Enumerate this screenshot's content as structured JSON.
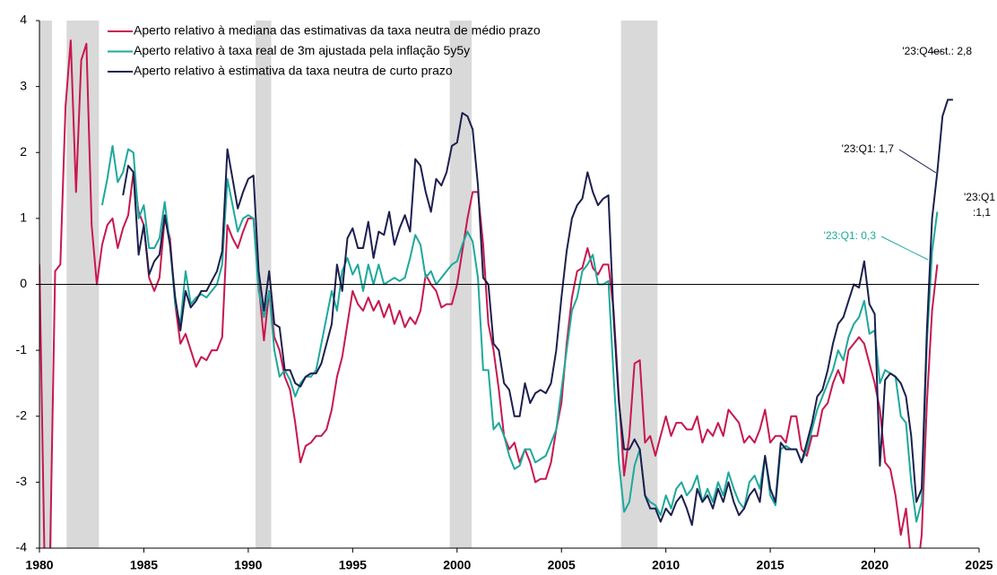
{
  "chart_data": {
    "type": "line",
    "x": [
      1980,
      1980.25,
      1980.5,
      1980.75,
      1981,
      1981.25,
      1981.5,
      1981.75,
      1982,
      1982.25,
      1982.5,
      1982.75,
      1983,
      1983.25,
      1983.5,
      1983.75,
      1984,
      1984.25,
      1984.5,
      1984.75,
      1985,
      1985.25,
      1985.5,
      1985.75,
      1986,
      1986.25,
      1986.5,
      1986.75,
      1987,
      1987.25,
      1987.5,
      1987.75,
      1988,
      1988.25,
      1988.5,
      1988.75,
      1989,
      1989.25,
      1989.5,
      1989.75,
      1990,
      1990.25,
      1990.5,
      1990.75,
      1991,
      1991.25,
      1991.5,
      1991.75,
      1992,
      1992.25,
      1992.5,
      1992.75,
      1993,
      1993.25,
      1993.5,
      1993.75,
      1994,
      1994.25,
      1994.5,
      1994.75,
      1995,
      1995.25,
      1995.5,
      1995.75,
      1996,
      1996.25,
      1996.5,
      1996.75,
      1997,
      1997.25,
      1997.5,
      1997.75,
      1998,
      1998.25,
      1998.5,
      1998.75,
      1999,
      1999.25,
      1999.5,
      1999.75,
      2000,
      2000.25,
      2000.5,
      2000.75,
      2001,
      2001.25,
      2001.5,
      2001.75,
      2002,
      2002.25,
      2002.5,
      2002.75,
      2003,
      2003.25,
      2003.5,
      2003.75,
      2004,
      2004.25,
      2004.5,
      2004.75,
      2005,
      2005.25,
      2005.5,
      2005.75,
      2006,
      2006.25,
      2006.5,
      2006.75,
      2007,
      2007.25,
      2007.5,
      2007.75,
      2008,
      2008.25,
      2008.5,
      2008.75,
      2009,
      2009.25,
      2009.5,
      2009.75,
      2010,
      2010.25,
      2010.5,
      2010.75,
      2011,
      2011.25,
      2011.5,
      2011.75,
      2012,
      2012.25,
      2012.5,
      2012.75,
      2013,
      2013.25,
      2013.5,
      2013.75,
      2014,
      2014.25,
      2014.5,
      2014.75,
      2015,
      2015.25,
      2015.5,
      2015.75,
      2016,
      2016.25,
      2016.5,
      2016.75,
      2017,
      2017.25,
      2017.5,
      2017.75,
      2018,
      2018.25,
      2018.5,
      2018.75,
      2019,
      2019.25,
      2019.5,
      2019.75,
      2020,
      2020.25,
      2020.5,
      2020.75,
      2021,
      2021.25,
      2021.5,
      2021.75,
      2022,
      2022.25,
      2022.5,
      2022.75,
      2023,
      2023.25,
      2023.5,
      2023.75
    ],
    "series": [
      {
        "name": "Aperto relativo à mediana das estimativas da taxa neutra de médio prazo",
        "color": "#c8174e",
        "values": [
          0.3,
          -4.3,
          -4.3,
          0.2,
          0.3,
          2.7,
          3.7,
          1.4,
          3.4,
          3.65,
          0.9,
          0.0,
          0.6,
          0.9,
          1.0,
          0.55,
          0.85,
          1.05,
          1.7,
          1.1,
          0.9,
          0.1,
          -0.1,
          0.1,
          1.0,
          0.7,
          -0.3,
          -0.9,
          -0.75,
          -1.0,
          -1.25,
          -1.1,
          -1.15,
          -1.0,
          -1.0,
          -0.8,
          0.9,
          0.7,
          0.55,
          0.8,
          1.0,
          1.0,
          0.0,
          -0.85,
          -0.1,
          -0.8,
          -1.0,
          -1.4,
          -1.6,
          -2.1,
          -2.7,
          -2.45,
          -2.4,
          -2.3,
          -2.3,
          -2.2,
          -1.9,
          -1.4,
          -1.1,
          -0.6,
          -0.1,
          -0.3,
          -0.4,
          -0.2,
          -0.4,
          -0.25,
          -0.5,
          -0.3,
          -0.6,
          -0.4,
          -0.65,
          -0.5,
          -0.6,
          -0.4,
          0.15,
          0.0,
          -0.1,
          -0.35,
          -0.3,
          -0.3,
          0.0,
          0.5,
          1.0,
          1.4,
          1.4,
          0.6,
          -0.6,
          -1.0,
          -1.6,
          -2.3,
          -2.5,
          -2.4,
          -2.7,
          -2.5,
          -2.7,
          -3.0,
          -2.95,
          -2.95,
          -2.7,
          -2.2,
          -1.8,
          -0.9,
          -0.2,
          0.2,
          0.25,
          0.55,
          0.25,
          0.15,
          0.3,
          0.3,
          -0.4,
          -1.7,
          -2.9,
          -2.3,
          -1.2,
          -1.15,
          -2.4,
          -2.3,
          -2.6,
          -2.3,
          -2.0,
          -2.3,
          -2.1,
          -2.1,
          -2.2,
          -2.2,
          -2.0,
          -2.4,
          -2.2,
          -2.3,
          -2.1,
          -2.3,
          -1.9,
          -2.0,
          -2.1,
          -2.4,
          -2.3,
          -2.4,
          -2.2,
          -1.9,
          -2.4,
          -2.3,
          -2.3,
          -2.4,
          -2.0,
          -2.0,
          -2.5,
          -2.6,
          -2.3,
          -2.3,
          -1.9,
          -1.8,
          -1.5,
          -1.3,
          -1.5,
          -1.0,
          -0.9,
          -0.8,
          -0.9,
          -1.2,
          -1.5,
          -1.9,
          -2.7,
          -2.8,
          -3.2,
          -3.8,
          -3.4,
          -4.2,
          -4.5,
          -3.8,
          -1.8,
          -0.4,
          0.3,
          null,
          null,
          null
        ]
      },
      {
        "name": "Aperto relativo à taxa real de 3m ajustada pela inflação 5y5y",
        "color": "#1ea89c",
        "values": [
          null,
          null,
          null,
          null,
          null,
          null,
          null,
          null,
          null,
          null,
          null,
          null,
          1.2,
          1.6,
          2.1,
          1.55,
          1.7,
          2.05,
          2.0,
          1.0,
          1.2,
          0.55,
          0.55,
          0.7,
          1.25,
          0.6,
          -0.3,
          -0.6,
          0.2,
          -0.3,
          -0.2,
          -0.15,
          -0.2,
          -0.1,
          0.0,
          0.3,
          1.6,
          1.2,
          0.8,
          1.0,
          1.05,
          1.0,
          -0.1,
          -0.5,
          -0.1,
          -1.0,
          -1.4,
          -1.3,
          -1.45,
          -1.7,
          -1.5,
          -1.4,
          -1.4,
          -1.3,
          -0.9,
          -0.5,
          -0.1,
          -0.4,
          0.2,
          0.4,
          0.15,
          0.3,
          -0.1,
          0.3,
          0.0,
          0.3,
          0.0,
          0.05,
          0.1,
          0.05,
          0.1,
          0.4,
          0.75,
          0.6,
          0.1,
          0.2,
          0.0,
          0.1,
          0.2,
          0.3,
          0.35,
          0.6,
          0.8,
          0.65,
          0.1,
          -1.3,
          -1.3,
          -2.2,
          -2.1,
          -2.3,
          -2.6,
          -2.8,
          -2.75,
          -2.5,
          -2.5,
          -2.7,
          -2.65,
          -2.6,
          -2.4,
          -2.2,
          -1.6,
          -1.0,
          -0.4,
          -0.2,
          0.2,
          0.3,
          0.45,
          0.0,
          0.0,
          0.05,
          -1.4,
          -2.7,
          -3.45,
          -3.3,
          -2.75,
          -2.5,
          -3.2,
          -3.3,
          -3.35,
          -3.5,
          -3.2,
          -3.4,
          -3.1,
          -3.0,
          -3.2,
          -3.1,
          -2.9,
          -3.3,
          -3.1,
          -3.3,
          -3.0,
          -3.2,
          -2.85,
          -3.1,
          -3.3,
          -3.4,
          -3.0,
          -2.9,
          -3.1,
          -2.6,
          -3.2,
          -3.35,
          -2.5,
          -2.45,
          -2.5,
          -2.5,
          -2.7,
          -2.5,
          -2.2,
          -1.9,
          -1.7,
          -1.5,
          -1.3,
          -1.0,
          -1.15,
          -0.8,
          -0.6,
          -0.5,
          -0.25,
          -0.75,
          -0.7,
          -1.5,
          -1.3,
          -1.35,
          -1.4,
          -2.0,
          -2.1,
          -3.0,
          -3.6,
          -3.3,
          -0.9,
          0.5,
          1.1,
          null,
          null,
          null
        ]
      },
      {
        "name": "Aperto relativo à estimativa da taxa neutra de curto prazo",
        "color": "#1c1f4e",
        "values": [
          null,
          null,
          null,
          null,
          null,
          null,
          null,
          null,
          null,
          null,
          null,
          null,
          null,
          null,
          null,
          null,
          1.35,
          1.8,
          1.7,
          0.45,
          0.9,
          0.15,
          0.35,
          0.45,
          1.05,
          0.6,
          -0.2,
          -0.7,
          -0.1,
          -0.35,
          -0.25,
          -0.1,
          -0.1,
          0.05,
          0.2,
          0.5,
          2.05,
          1.6,
          1.15,
          1.4,
          1.6,
          1.65,
          0.2,
          -0.4,
          0.2,
          -0.6,
          -0.65,
          -1.3,
          -1.3,
          -1.5,
          -1.55,
          -1.4,
          -1.35,
          -1.35,
          -1.2,
          -0.9,
          -0.6,
          0.3,
          -0.1,
          0.7,
          0.85,
          0.55,
          0.55,
          0.95,
          0.4,
          0.8,
          0.75,
          1.1,
          0.6,
          0.85,
          1.05,
          0.8,
          1.9,
          1.8,
          1.4,
          1.1,
          1.6,
          1.5,
          1.7,
          2.1,
          2.15,
          2.6,
          2.55,
          2.35,
          1.5,
          0.1,
          0.0,
          -0.9,
          -1.0,
          -1.5,
          -1.6,
          -2.0,
          -2.0,
          -1.5,
          -1.8,
          -1.65,
          -1.6,
          -1.65,
          -1.5,
          -1.0,
          -0.2,
          0.5,
          1.0,
          1.2,
          1.3,
          1.7,
          1.4,
          1.2,
          1.3,
          1.35,
          -0.5,
          -1.8,
          -2.5,
          -2.5,
          -2.35,
          -2.5,
          -3.2,
          -3.4,
          -3.4,
          -3.6,
          -3.4,
          -3.5,
          -3.3,
          -3.2,
          -3.4,
          -3.65,
          -3.1,
          -3.3,
          -3.2,
          -3.4,
          -3.1,
          -3.3,
          -3.0,
          -3.3,
          -3.5,
          -3.4,
          -3.2,
          -3.1,
          -3.3,
          -2.6,
          -3.1,
          -3.3,
          -2.4,
          -2.5,
          -2.5,
          -2.5,
          -2.7,
          -2.4,
          -2.1,
          -1.7,
          -1.6,
          -1.3,
          -0.9,
          -0.6,
          -0.5,
          -0.25,
          0.0,
          -0.05,
          0.35,
          -0.3,
          -0.45,
          -2.75,
          -1.45,
          -1.35,
          -1.4,
          -1.5,
          -1.7,
          -2.3,
          -3.3,
          -3.1,
          -0.7,
          1.0,
          1.7,
          2.55,
          2.8,
          2.8
        ]
      }
    ],
    "shaded_periods": [
      [
        1980.0,
        1980.6
      ],
      [
        1981.3,
        1982.85
      ],
      [
        1990.35,
        1991.1
      ],
      [
        1999.65,
        2000.7
      ],
      [
        2007.85,
        2009.6
      ],
      [
        1969.95,
        1970.5
      ]
    ],
    "shade_color": "#d9d9d9",
    "xlim": [
      1980,
      2025
    ],
    "xticks": [
      1980,
      1985,
      1990,
      1995,
      2000,
      2005,
      2010,
      2015,
      2020,
      2025
    ],
    "ylim": [
      -4,
      4
    ],
    "yticks": [
      -4,
      -3,
      -2,
      -1,
      0,
      1,
      2,
      3,
      4
    ],
    "legend": "upper left",
    "annotations": [
      "'23:Q4est.: 2,8",
      "'23:Q1: 1,7",
      "'23:Q1",
      ":1,1",
      "'23:Q1: 0,3"
    ]
  }
}
